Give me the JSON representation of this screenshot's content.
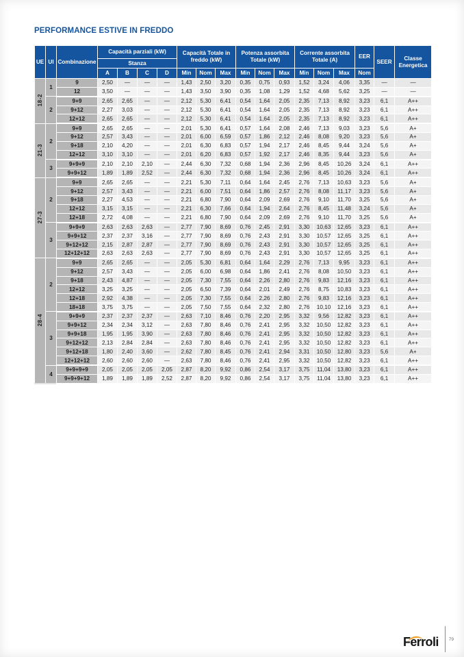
{
  "title": "PERFORMANCE ESTIVE IN FREDDO",
  "colors": {
    "header_blue": "#15549e",
    "cell_gray": "#b5b5b5",
    "row_dark": "#e8e8e8",
    "row_light": "#f4f4f4",
    "logo_orange": "#f0a22e"
  },
  "table": {
    "header": {
      "ue": "UE",
      "ui": "UI",
      "combinazione": "Combinazione",
      "cap_parziali": "Capacità parziali (kW)",
      "stanza": "Stanza",
      "rooms": [
        "A",
        "B",
        "C",
        "D"
      ],
      "cap_totale": "Capacità Totale in freddo (kW)",
      "potenza": "Potenza assorbita Totale (kW)",
      "corrente": "Corrente assorbita Totale (A)",
      "eer": "EER",
      "nom": "Nom",
      "minmax": [
        "Min",
        "Nom",
        "Max"
      ],
      "seer": "SEER",
      "classe": "Classe Energetica"
    },
    "groups": [
      {
        "ue": "18-2",
        "subgroups": [
          {
            "ui": "1",
            "rows": [
              {
                "combinazione": "9",
                "values": [
                  "2,50",
                  "—",
                  "—",
                  "—",
                  "1,43",
                  "2,50",
                  "3,20",
                  "0,35",
                  "0,75",
                  "0,93",
                  "1,52",
                  "3,24",
                  "4,06",
                  "3,35",
                  "—",
                  "—"
                ]
              },
              {
                "combinazione": "12",
                "values": [
                  "3,50",
                  "—",
                  "—",
                  "—",
                  "1,43",
                  "3,50",
                  "3,90",
                  "0,35",
                  "1,08",
                  "1,29",
                  "1,52",
                  "4,68",
                  "5,62",
                  "3,25",
                  "—",
                  "—"
                ]
              }
            ]
          },
          {
            "ui": "2",
            "rows": [
              {
                "combinazione": "9+9",
                "values": [
                  "2,65",
                  "2,65",
                  "—",
                  "—",
                  "2,12",
                  "5,30",
                  "6,41",
                  "0,54",
                  "1,64",
                  "2,05",
                  "2,35",
                  "7,13",
                  "8,92",
                  "3,23",
                  "6,1",
                  "A++"
                ]
              },
              {
                "combinazione": "9+12",
                "values": [
                  "2,27",
                  "3,03",
                  "—",
                  "—",
                  "2,12",
                  "5,30",
                  "6,41",
                  "0,54",
                  "1,64",
                  "2,05",
                  "2,35",
                  "7,13",
                  "8,92",
                  "3,23",
                  "6,1",
                  "A++"
                ]
              },
              {
                "combinazione": "12+12",
                "values": [
                  "2,65",
                  "2,65",
                  "—",
                  "—",
                  "2,12",
                  "5,30",
                  "6,41",
                  "0,54",
                  "1,64",
                  "2,05",
                  "2,35",
                  "7,13",
                  "8,92",
                  "3,23",
                  "6,1",
                  "A++"
                ]
              }
            ]
          }
        ]
      },
      {
        "ue": "21-3",
        "subgroups": [
          {
            "ui": "2",
            "rows": [
              {
                "combinazione": "9+9",
                "values": [
                  "2,65",
                  "2,65",
                  "—",
                  "—",
                  "2,01",
                  "5,30",
                  "6,41",
                  "0,57",
                  "1,64",
                  "2,08",
                  "2,46",
                  "7,13",
                  "9,03",
                  "3,23",
                  "5,6",
                  "A+"
                ]
              },
              {
                "combinazione": "9+12",
                "values": [
                  "2,57",
                  "3,43",
                  "—",
                  "—",
                  "2,01",
                  "6,00",
                  "6,59",
                  "0,57",
                  "1,86",
                  "2,12",
                  "2,46",
                  "8,08",
                  "9,20",
                  "3,23",
                  "5,6",
                  "A+"
                ]
              },
              {
                "combinazione": "9+18",
                "values": [
                  "2,10",
                  "4,20",
                  "—",
                  "—",
                  "2,01",
                  "6,30",
                  "6,83",
                  "0,57",
                  "1,94",
                  "2,17",
                  "2,46",
                  "8,45",
                  "9,44",
                  "3,24",
                  "5,6",
                  "A+"
                ]
              },
              {
                "combinazione": "12+12",
                "values": [
                  "3,10",
                  "3,10",
                  "—",
                  "—",
                  "2,01",
                  "6,20",
                  "6,83",
                  "0,57",
                  "1,92",
                  "2,17",
                  "2,46",
                  "8,35",
                  "9,44",
                  "3,23",
                  "5,6",
                  "A+"
                ]
              }
            ]
          },
          {
            "ui": "3",
            "rows": [
              {
                "combinazione": "9+9+9",
                "values": [
                  "2,10",
                  "2,10",
                  "2,10",
                  "—",
                  "2,44",
                  "6,30",
                  "7,32",
                  "0,68",
                  "1,94",
                  "2,36",
                  "2,96",
                  "8,45",
                  "10,26",
                  "3,24",
                  "6,1",
                  "A++"
                ]
              },
              {
                "combinazione": "9+9+12",
                "values": [
                  "1,89",
                  "1,89",
                  "2,52",
                  "—",
                  "2,44",
                  "6,30",
                  "7,32",
                  "0,68",
                  "1,94",
                  "2,36",
                  "2,96",
                  "8,45",
                  "10,26",
                  "3,24",
                  "6,1",
                  "A++"
                ]
              }
            ]
          }
        ]
      },
      {
        "ue": "27-3",
        "subgroups": [
          {
            "ui": "2",
            "rows": [
              {
                "combinazione": "9+9",
                "values": [
                  "2,65",
                  "2,65",
                  "—",
                  "—",
                  "2,21",
                  "5,30",
                  "7,11",
                  "0,64",
                  "1,64",
                  "2,45",
                  "2,76",
                  "7,13",
                  "10,63",
                  "3,23",
                  "5,6",
                  "A+"
                ]
              },
              {
                "combinazione": "9+12",
                "values": [
                  "2,57",
                  "3,43",
                  "—",
                  "—",
                  "2,21",
                  "6,00",
                  "7,51",
                  "0,64",
                  "1,86",
                  "2,57",
                  "2,76",
                  "8,08",
                  "11,17",
                  "3,23",
                  "5,6",
                  "A+"
                ]
              },
              {
                "combinazione": "9+18",
                "values": [
                  "2,27",
                  "4,53",
                  "—",
                  "—",
                  "2,21",
                  "6,80",
                  "7,90",
                  "0,64",
                  "2,09",
                  "2,69",
                  "2,76",
                  "9,10",
                  "11,70",
                  "3,25",
                  "5,6",
                  "A+"
                ]
              },
              {
                "combinazione": "12+12",
                "values": [
                  "3,15",
                  "3,15",
                  "—",
                  "—",
                  "2,21",
                  "6,30",
                  "7,66",
                  "0,64",
                  "1,94",
                  "2,64",
                  "2,76",
                  "8,45",
                  "11,48",
                  "3,24",
                  "5,6",
                  "A+"
                ]
              },
              {
                "combinazione": "12+18",
                "values": [
                  "2,72",
                  "4,08",
                  "—",
                  "—",
                  "2,21",
                  "6,80",
                  "7,90",
                  "0,64",
                  "2,09",
                  "2,69",
                  "2,76",
                  "9,10",
                  "11,70",
                  "3,25",
                  "5,6",
                  "A+"
                ]
              }
            ]
          },
          {
            "ui": "3",
            "rows": [
              {
                "combinazione": "9+9+9",
                "values": [
                  "2,63",
                  "2,63",
                  "2,63",
                  "—",
                  "2,77",
                  "7,90",
                  "8,69",
                  "0,76",
                  "2,45",
                  "2,91",
                  "3,30",
                  "10,63",
                  "12,65",
                  "3,23",
                  "6,1",
                  "A++"
                ]
              },
              {
                "combinazione": "9+9+12",
                "values": [
                  "2,37",
                  "2,37",
                  "3,16",
                  "—",
                  "2,77",
                  "7,90",
                  "8,69",
                  "0,76",
                  "2,43",
                  "2,91",
                  "3,30",
                  "10,57",
                  "12,65",
                  "3,25",
                  "6,1",
                  "A++"
                ]
              },
              {
                "combinazione": "9+12+12",
                "values": [
                  "2,15",
                  "2,87",
                  "2,87",
                  "—",
                  "2,77",
                  "7,90",
                  "8,69",
                  "0,76",
                  "2,43",
                  "2,91",
                  "3,30",
                  "10,57",
                  "12,65",
                  "3,25",
                  "6,1",
                  "A++"
                ]
              },
              {
                "combinazione": "12+12+12",
                "values": [
                  "2,63",
                  "2,63",
                  "2,63",
                  "—",
                  "2,77",
                  "7,90",
                  "8,69",
                  "0,76",
                  "2,43",
                  "2,91",
                  "3,30",
                  "10,57",
                  "12,65",
                  "3,25",
                  "6,1",
                  "A++"
                ]
              }
            ]
          }
        ]
      },
      {
        "ue": "28-4",
        "subgroups": [
          {
            "ui": "2",
            "rows": [
              {
                "combinazione": "9+9",
                "values": [
                  "2,65",
                  "2,65",
                  "—",
                  "—",
                  "2,05",
                  "5,30",
                  "6,81",
                  "0,64",
                  "1,64",
                  "2,29",
                  "2,76",
                  "7,13",
                  "9,95",
                  "3,23",
                  "6,1",
                  "A++"
                ]
              },
              {
                "combinazione": "9+12",
                "values": [
                  "2,57",
                  "3,43",
                  "—",
                  "—",
                  "2,05",
                  "6,00",
                  "6,98",
                  "0,64",
                  "1,86",
                  "2,41",
                  "2,76",
                  "8,08",
                  "10,50",
                  "3,23",
                  "6,1",
                  "A++"
                ]
              },
              {
                "combinazione": "9+18",
                "values": [
                  "2,43",
                  "4,87",
                  "—",
                  "—",
                  "2,05",
                  "7,30",
                  "7,55",
                  "0,64",
                  "2,26",
                  "2,80",
                  "2,76",
                  "9,83",
                  "12,16",
                  "3,23",
                  "6,1",
                  "A++"
                ]
              },
              {
                "combinazione": "12+12",
                "values": [
                  "3,25",
                  "3,25",
                  "—",
                  "—",
                  "2,05",
                  "6,50",
                  "7,39",
                  "0,64",
                  "2,01",
                  "2,49",
                  "2,76",
                  "8,75",
                  "10,83",
                  "3,23",
                  "6,1",
                  "A++"
                ]
              },
              {
                "combinazione": "12+18",
                "values": [
                  "2,92",
                  "4,38",
                  "—",
                  "—",
                  "2,05",
                  "7,30",
                  "7,55",
                  "0,64",
                  "2,26",
                  "2,80",
                  "2,76",
                  "9,83",
                  "12,16",
                  "3,23",
                  "6,1",
                  "A++"
                ]
              },
              {
                "combinazione": "18+18",
                "values": [
                  "3,75",
                  "3,75",
                  "—",
                  "—",
                  "2,05",
                  "7,50",
                  "7,55",
                  "0,64",
                  "2,32",
                  "2,80",
                  "2,76",
                  "10,10",
                  "12,16",
                  "3,23",
                  "6,1",
                  "A++"
                ]
              }
            ]
          },
          {
            "ui": "3",
            "rows": [
              {
                "combinazione": "9+9+9",
                "values": [
                  "2,37",
                  "2,37",
                  "2,37",
                  "—",
                  "2,63",
                  "7,10",
                  "8,46",
                  "0,76",
                  "2,20",
                  "2,95",
                  "3,32",
                  "9,56",
                  "12,82",
                  "3,23",
                  "6,1",
                  "A++"
                ]
              },
              {
                "combinazione": "9+9+12",
                "values": [
                  "2,34",
                  "2,34",
                  "3,12",
                  "—",
                  "2,63",
                  "7,80",
                  "8,46",
                  "0,76",
                  "2,41",
                  "2,95",
                  "3,32",
                  "10,50",
                  "12,82",
                  "3,23",
                  "6,1",
                  "A++"
                ]
              },
              {
                "combinazione": "9+9+18",
                "values": [
                  "1,95",
                  "1,95",
                  "3,90",
                  "—",
                  "2,63",
                  "7,80",
                  "8,46",
                  "0,76",
                  "2,41",
                  "2,95",
                  "3,32",
                  "10,50",
                  "12,82",
                  "3,23",
                  "6,1",
                  "A++"
                ]
              },
              {
                "combinazione": "9+12+12",
                "values": [
                  "2,13",
                  "2,84",
                  "2,84",
                  "—",
                  "2,63",
                  "7,80",
                  "8,46",
                  "0,76",
                  "2,41",
                  "2,95",
                  "3,32",
                  "10,50",
                  "12,82",
                  "3,23",
                  "6,1",
                  "A++"
                ]
              },
              {
                "combinazione": "9+12+18",
                "values": [
                  "1,80",
                  "2,40",
                  "3,60",
                  "—",
                  "2,62",
                  "7,80",
                  "8,45",
                  "0,76",
                  "2,41",
                  "2,94",
                  "3,31",
                  "10,50",
                  "12,80",
                  "3,23",
                  "5,6",
                  "A+"
                ]
              },
              {
                "combinazione": "12+12+12",
                "values": [
                  "2,60",
                  "2,60",
                  "2,60",
                  "—",
                  "2,63",
                  "7,80",
                  "8,46",
                  "0,76",
                  "2,41",
                  "2,95",
                  "3,32",
                  "10,50",
                  "12,82",
                  "3,23",
                  "6,1",
                  "A++"
                ]
              }
            ]
          },
          {
            "ui": "4",
            "rows": [
              {
                "combinazione": "9+9+9+9",
                "values": [
                  "2,05",
                  "2,05",
                  "2,05",
                  "2,05",
                  "2,87",
                  "8,20",
                  "9,92",
                  "0,86",
                  "2,54",
                  "3,17",
                  "3,75",
                  "11,04",
                  "13,80",
                  "3,23",
                  "6,1",
                  "A++"
                ]
              },
              {
                "combinazione": "9+9+9+12",
                "values": [
                  "1,89",
                  "1,89",
                  "1,89",
                  "2,52",
                  "2,87",
                  "8,20",
                  "9,92",
                  "0,86",
                  "2,54",
                  "3,17",
                  "3,75",
                  "11,04",
                  "13,80",
                  "3,23",
                  "6,1",
                  "A++"
                ]
              }
            ]
          }
        ]
      }
    ]
  },
  "footer": {
    "logo": "Ferroli",
    "page": "79"
  }
}
